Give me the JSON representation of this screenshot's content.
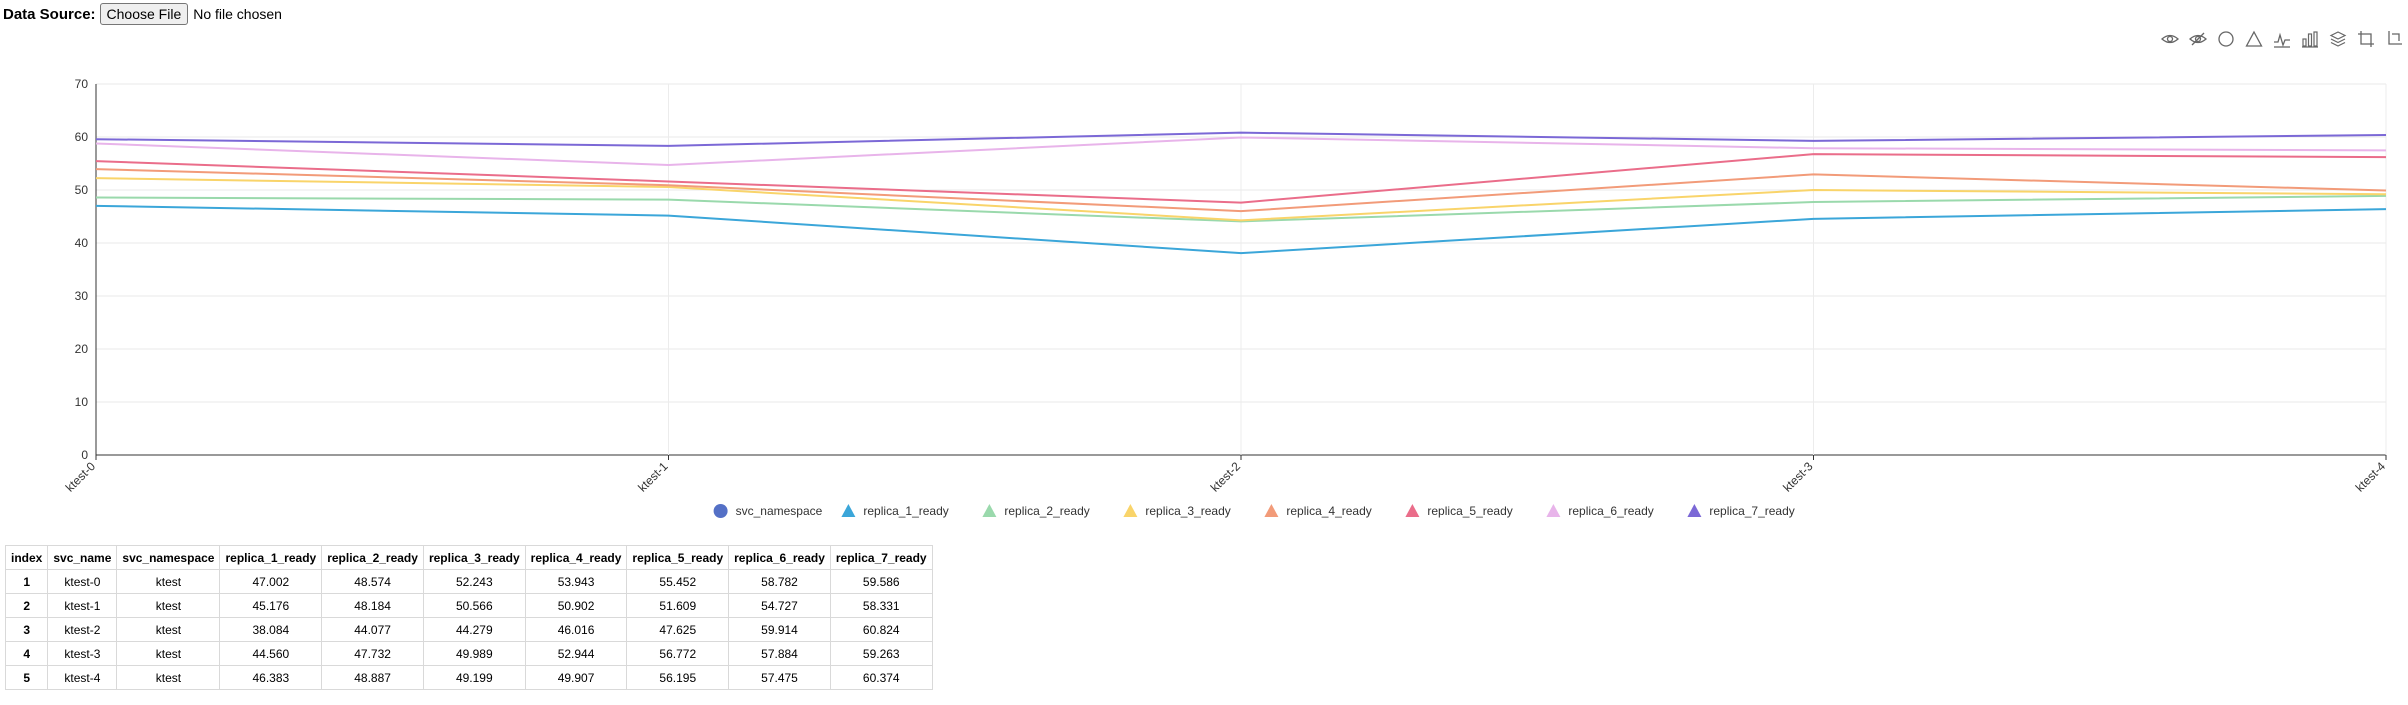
{
  "header": {
    "label": "Data Source:",
    "file_button": "Choose File",
    "file_status": "No file chosen"
  },
  "toolbox": {
    "icons": [
      "eye-icon",
      "eye-off-icon",
      "circle-icon",
      "triangle-icon",
      "line-chart-icon",
      "bar-chart-icon",
      "stack-icon",
      "crop-icon",
      "restore-icon"
    ]
  },
  "chart_data": {
    "type": "line",
    "categories": [
      "ktest-0",
      "ktest-1",
      "ktest-2",
      "ktest-3",
      "ktest-4"
    ],
    "ylim": [
      0,
      70
    ],
    "yticks": [
      0,
      10,
      20,
      30,
      40,
      50,
      60,
      70
    ],
    "grid": true,
    "legend_position": "bottom-center",
    "legend": [
      {
        "name": "svc_namespace",
        "color": "#5470c6",
        "marker": "circle"
      },
      {
        "name": "replica_1_ready",
        "color": "#3ba6d9",
        "marker": "triangle"
      },
      {
        "name": "replica_2_ready",
        "color": "#9ad9ac",
        "marker": "triangle"
      },
      {
        "name": "replica_3_ready",
        "color": "#f9d46a",
        "marker": "triangle"
      },
      {
        "name": "replica_4_ready",
        "color": "#f29b79",
        "marker": "triangle"
      },
      {
        "name": "replica_5_ready",
        "color": "#ea6d8a",
        "marker": "triangle"
      },
      {
        "name": "replica_6_ready",
        "color": "#e8b4ea",
        "marker": "triangle"
      },
      {
        "name": "replica_7_ready",
        "color": "#7b68d6",
        "marker": "triangle"
      }
    ],
    "series": [
      {
        "name": "replica_1_ready",
        "color": "#3ba6d9",
        "values": [
          47.002,
          45.176,
          38.084,
          44.56,
          46.383
        ]
      },
      {
        "name": "replica_2_ready",
        "color": "#9ad9ac",
        "values": [
          48.574,
          48.184,
          44.077,
          47.732,
          48.887
        ]
      },
      {
        "name": "replica_3_ready",
        "color": "#f9d46a",
        "values": [
          52.243,
          50.566,
          44.279,
          49.989,
          49.199
        ]
      },
      {
        "name": "replica_4_ready",
        "color": "#f29b79",
        "values": [
          53.943,
          50.902,
          46.016,
          52.944,
          49.907
        ]
      },
      {
        "name": "replica_5_ready",
        "color": "#ea6d8a",
        "values": [
          55.452,
          51.609,
          47.625,
          56.772,
          56.195
        ]
      },
      {
        "name": "replica_6_ready",
        "color": "#e8b4ea",
        "values": [
          58.782,
          54.727,
          59.914,
          57.884,
          57.475
        ]
      },
      {
        "name": "replica_7_ready",
        "color": "#7b68d6",
        "values": [
          59.586,
          58.331,
          60.824,
          59.263,
          60.374
        ]
      }
    ]
  },
  "table": {
    "columns": [
      "index",
      "svc_name",
      "svc_namespace",
      "replica_1_ready",
      "replica_2_ready",
      "replica_3_ready",
      "replica_4_ready",
      "replica_5_ready",
      "replica_6_ready",
      "replica_7_ready"
    ],
    "rows": [
      [
        "1",
        "ktest-0",
        "ktest",
        "47.002",
        "48.574",
        "52.243",
        "53.943",
        "55.452",
        "58.782",
        "59.586"
      ],
      [
        "2",
        "ktest-1",
        "ktest",
        "45.176",
        "48.184",
        "50.566",
        "50.902",
        "51.609",
        "54.727",
        "58.331"
      ],
      [
        "3",
        "ktest-2",
        "ktest",
        "38.084",
        "44.077",
        "44.279",
        "46.016",
        "47.625",
        "59.914",
        "60.824"
      ],
      [
        "4",
        "ktest-3",
        "ktest",
        "44.560",
        "47.732",
        "49.989",
        "52.944",
        "56.772",
        "57.884",
        "59.263"
      ],
      [
        "5",
        "ktest-4",
        "ktest",
        "46.383",
        "48.887",
        "49.199",
        "49.907",
        "56.195",
        "57.475",
        "60.374"
      ]
    ]
  }
}
